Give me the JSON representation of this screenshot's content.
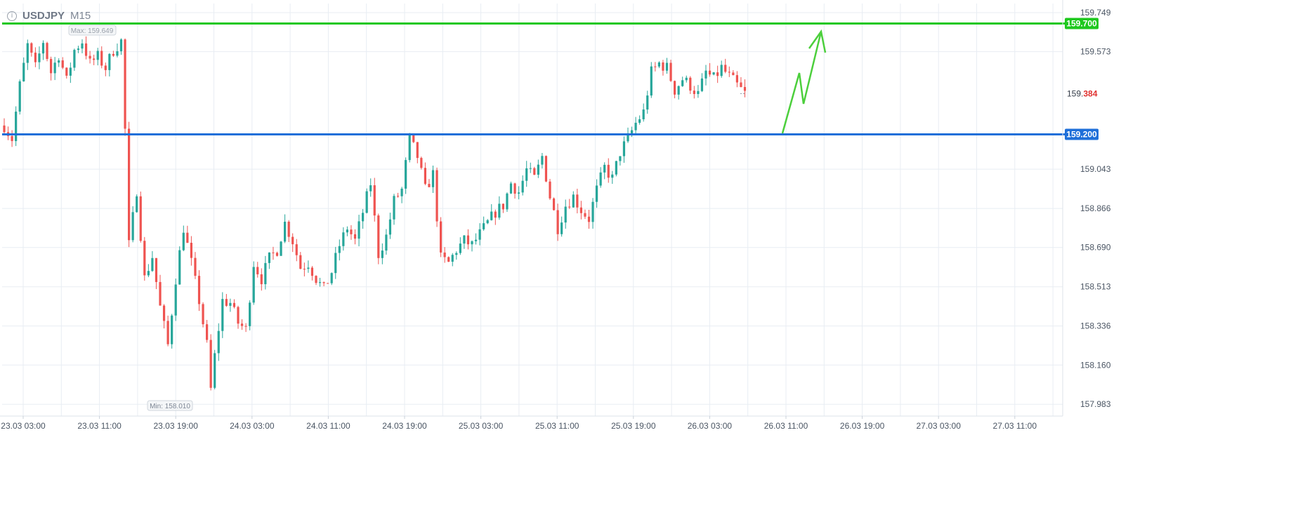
{
  "header": {
    "info_icon": "info-circle-icon",
    "symbol": "USDJPY",
    "timeframe": "M15"
  },
  "chart_data": {
    "type": "candlestick",
    "title": "USDJPY M15",
    "ylim": [
      157.93,
      159.79
    ],
    "y_ticks": [
      "159.749",
      "159.573",
      "159.043",
      "158.866",
      "158.690",
      "158.513",
      "158.336",
      "158.160",
      "157.983"
    ],
    "x_ticks": [
      "23.03 03:00",
      "23.03 11:00",
      "23.03 19:00",
      "24.03 03:00",
      "24.03 11:00",
      "24.03 19:00",
      "25.03 03:00",
      "25.03 11:00",
      "25.03 19:00",
      "26.03 03:00",
      "26.03 11:00",
      "26.03 19:00",
      "27.03 03:00",
      "27.03 11:00"
    ],
    "grid": true,
    "colors": {
      "up": "#26a69a",
      "down": "#ef5350",
      "grid": "#e8edf3",
      "axis_text": "#4a5563",
      "resistance": "#1ec81e",
      "support": "#1e6fd9",
      "arrow": "#4ccf3c"
    },
    "levels": [
      {
        "name": "resistance",
        "value": 159.7,
        "label": "159.700",
        "color": "#1ec81e"
      },
      {
        "name": "support",
        "value": 159.2,
        "label": "159.200",
        "color": "#1e6fd9"
      }
    ],
    "current_price": {
      "value": 159.384,
      "label_main": "159.",
      "label_tail": "384"
    },
    "max_marker": {
      "label": "Max: 159.649",
      "value": 159.649
    },
    "min_marker": {
      "label": "Min: 158.010",
      "value": 158.01
    },
    "price_path": [
      [
        0,
        159.24
      ],
      [
        2,
        159.18
      ],
      [
        4,
        159.42
      ],
      [
        6,
        159.6
      ],
      [
        8,
        159.5
      ],
      [
        10,
        159.62
      ],
      [
        12,
        159.48
      ],
      [
        14,
        159.56
      ],
      [
        16,
        159.44
      ],
      [
        18,
        159.58
      ],
      [
        20,
        159.62
      ],
      [
        22,
        159.52
      ],
      [
        24,
        159.55
      ],
      [
        26,
        159.5
      ],
      [
        28,
        159.58
      ],
      [
        30,
        159.62
      ],
      [
        31,
        159.22
      ],
      [
        32,
        158.7
      ],
      [
        34,
        158.95
      ],
      [
        36,
        158.55
      ],
      [
        38,
        158.65
      ],
      [
        40,
        158.42
      ],
      [
        42,
        158.25
      ],
      [
        44,
        158.55
      ],
      [
        46,
        158.78
      ],
      [
        48,
        158.62
      ],
      [
        50,
        158.45
      ],
      [
        52,
        158.25
      ],
      [
        53,
        158.05
      ],
      [
        54,
        158.2
      ],
      [
        56,
        158.45
      ],
      [
        58,
        158.44
      ],
      [
        60,
        158.35
      ],
      [
        62,
        158.32
      ],
      [
        64,
        158.62
      ],
      [
        66,
        158.55
      ],
      [
        68,
        158.64
      ],
      [
        70,
        158.68
      ],
      [
        72,
        158.8
      ],
      [
        74,
        158.72
      ],
      [
        76,
        158.6
      ],
      [
        78,
        158.62
      ],
      [
        80,
        158.55
      ],
      [
        82,
        158.5
      ],
      [
        84,
        158.58
      ],
      [
        86,
        158.7
      ],
      [
        88,
        158.78
      ],
      [
        90,
        158.72
      ],
      [
        92,
        158.85
      ],
      [
        94,
        158.98
      ],
      [
        96,
        158.66
      ],
      [
        98,
        158.74
      ],
      [
        100,
        158.9
      ],
      [
        102,
        158.95
      ],
      [
        104,
        159.18
      ],
      [
        106,
        159.1
      ],
      [
        108,
        158.95
      ],
      [
        110,
        159.02
      ],
      [
        112,
        158.64
      ],
      [
        114,
        158.62
      ],
      [
        116,
        158.68
      ],
      [
        118,
        158.72
      ],
      [
        120,
        158.7
      ],
      [
        122,
        158.75
      ],
      [
        124,
        158.8
      ],
      [
        126,
        158.85
      ],
      [
        128,
        158.88
      ],
      [
        130,
        158.98
      ],
      [
        132,
        158.94
      ],
      [
        134,
        159.04
      ],
      [
        136,
        159.0
      ],
      [
        138,
        159.1
      ],
      [
        140,
        158.92
      ],
      [
        142,
        158.78
      ],
      [
        144,
        158.88
      ],
      [
        146,
        158.92
      ],
      [
        148,
        158.86
      ],
      [
        150,
        158.82
      ],
      [
        152,
        158.95
      ],
      [
        154,
        159.05
      ],
      [
        156,
        159.0
      ],
      [
        158,
        159.12
      ],
      [
        160,
        159.18
      ],
      [
        162,
        159.25
      ],
      [
        164,
        159.3
      ],
      [
        166,
        159.48
      ],
      [
        168,
        159.52
      ],
      [
        170,
        159.5
      ],
      [
        172,
        159.4
      ],
      [
        174,
        159.45
      ],
      [
        176,
        159.42
      ],
      [
        178,
        159.38
      ],
      [
        180,
        159.48
      ],
      [
        182,
        159.45
      ],
      [
        184,
        159.5
      ],
      [
        186,
        159.46
      ],
      [
        188,
        159.42
      ],
      [
        190,
        159.384
      ]
    ],
    "forecast_path": [
      [
        1114,
        190
      ],
      [
        1138,
        104
      ],
      [
        1144,
        148
      ],
      [
        1169,
        45
      ]
    ],
    "forecast_arrow": [
      [
        1152,
        69
      ],
      [
        1169,
        45
      ],
      [
        1175,
        75
      ]
    ]
  }
}
